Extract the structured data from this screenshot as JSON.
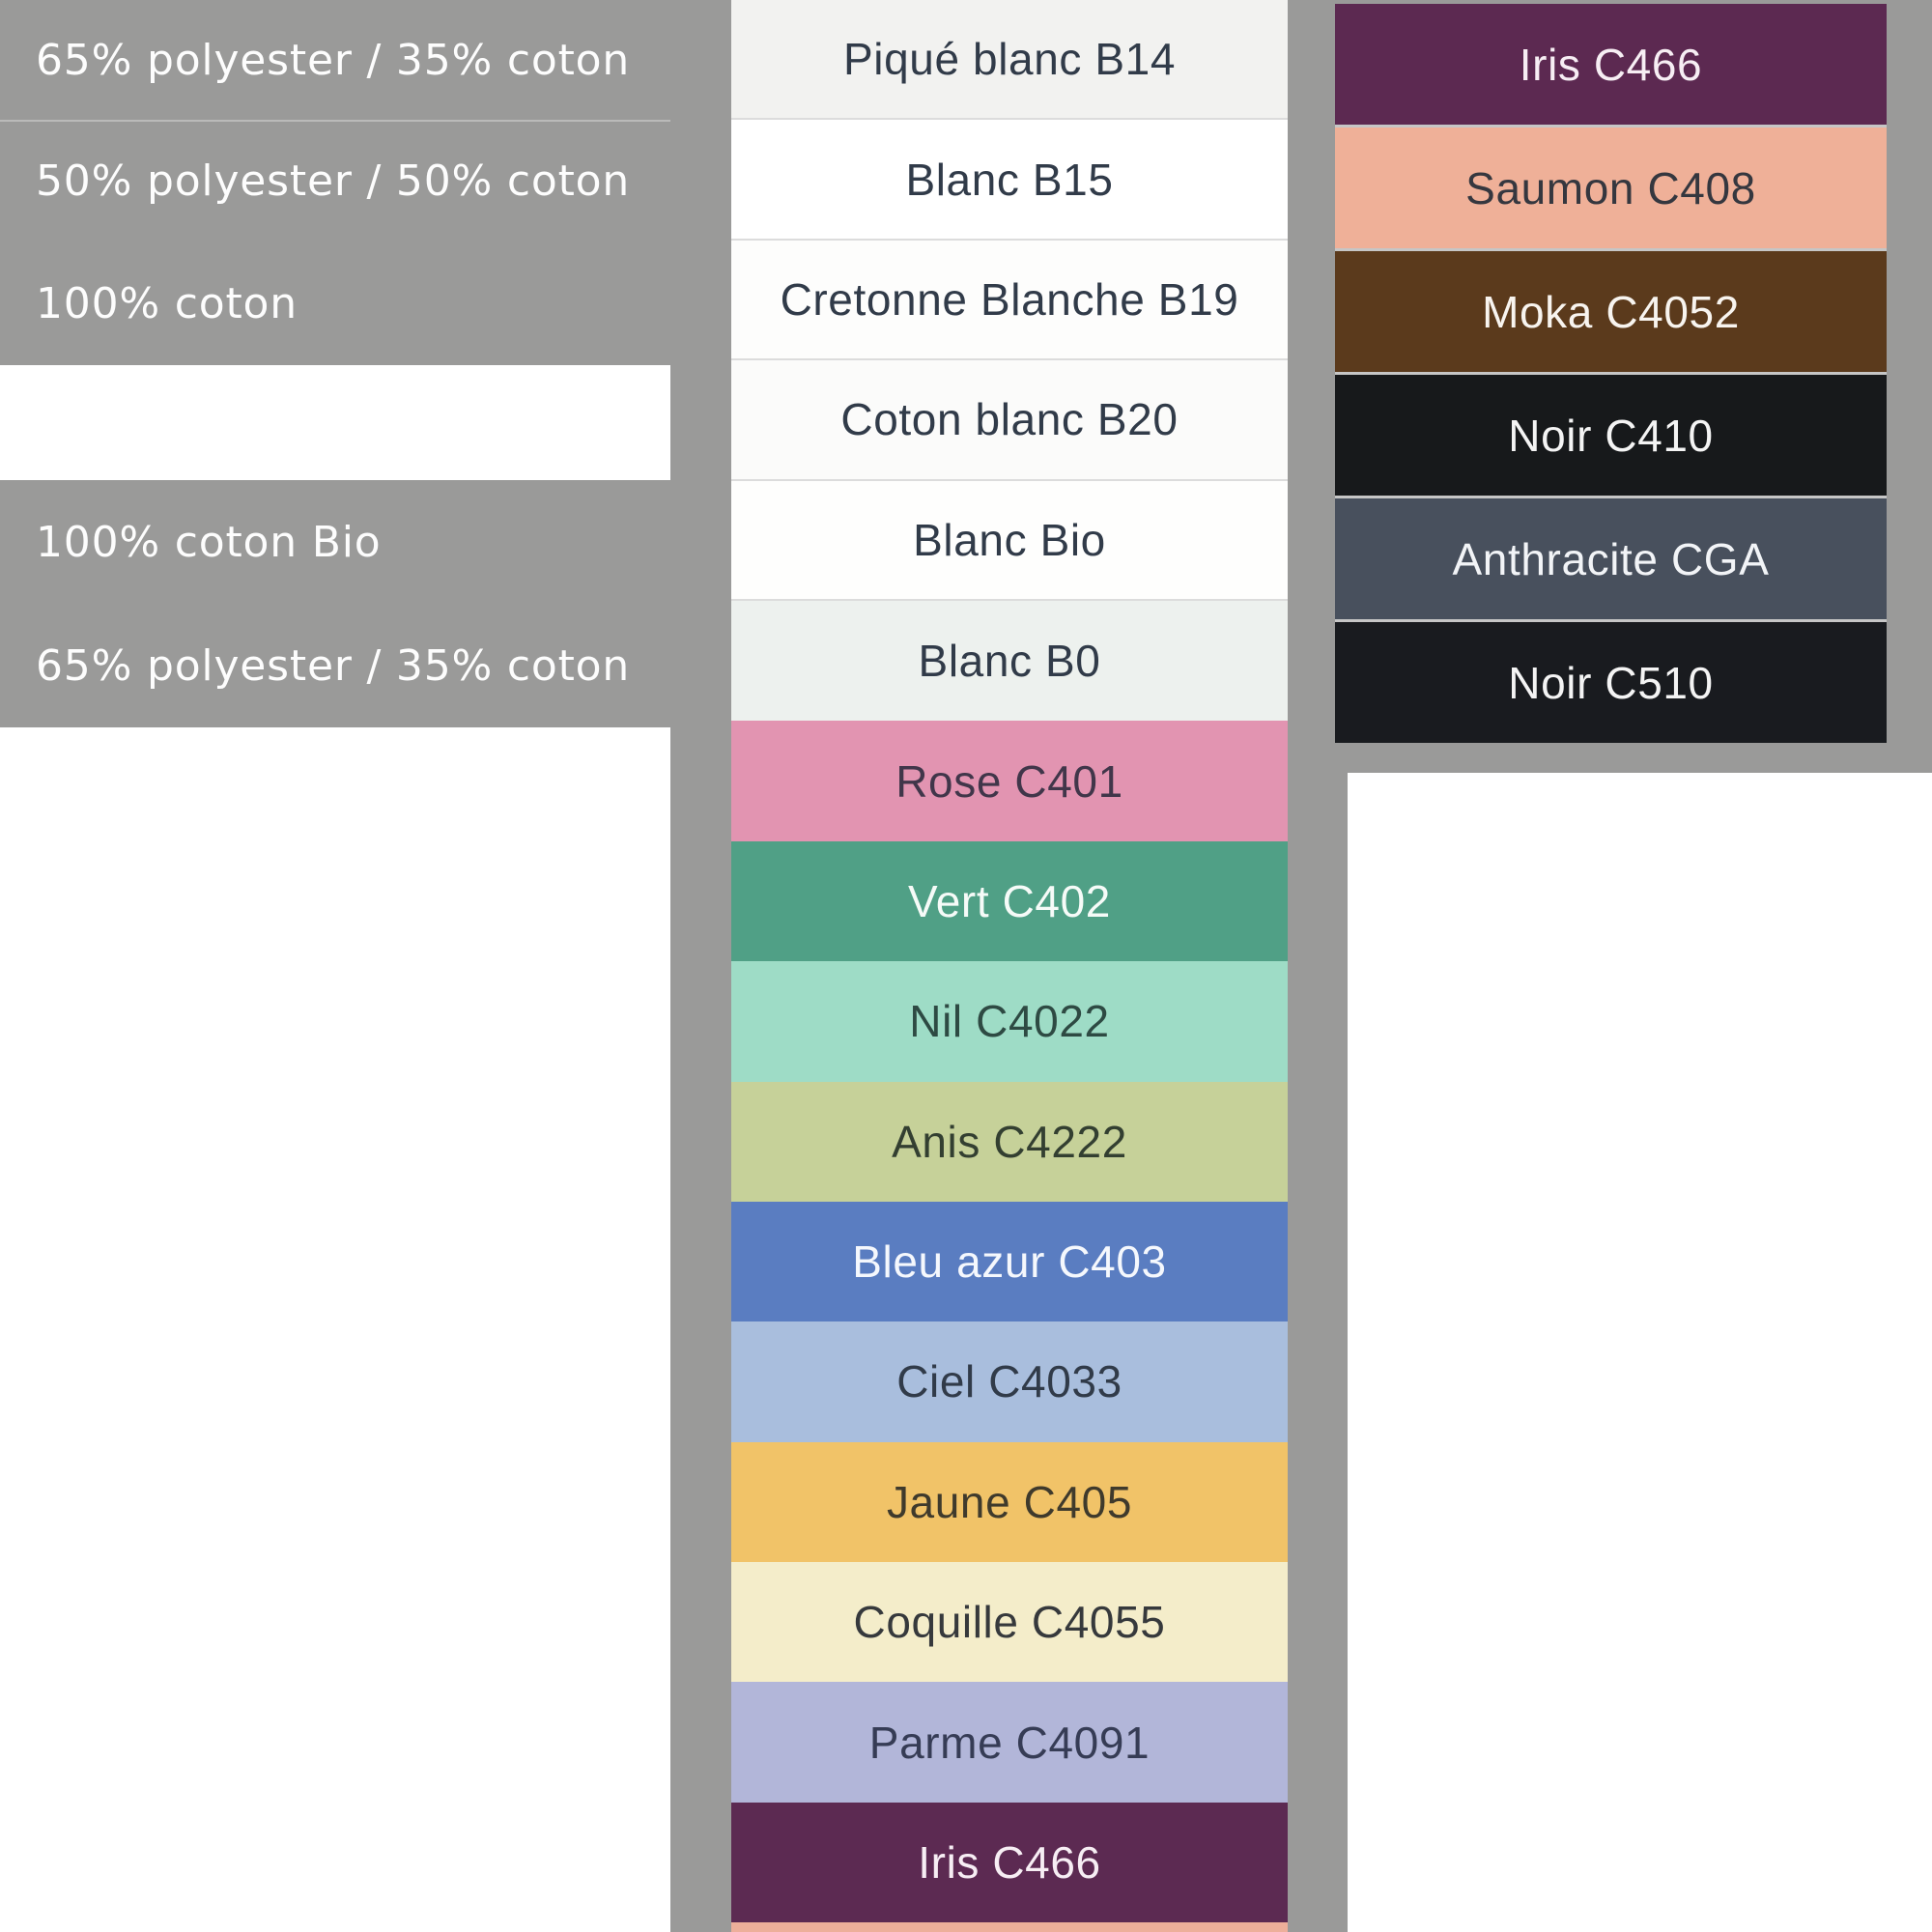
{
  "page": {
    "background_gray": "#9a9a99",
    "white_page_color": "#ffffff",
    "divider_color": "rgba(255,255,255,0.32)",
    "white_row_separator": "#dcdcdc",
    "right_row_separator": "#c6c6c6",
    "label_dark_color": "#313b49",
    "label_light_color": "#f7f2f5",
    "left_text_color": "#fdfdfd"
  },
  "left_panel": {
    "rows": [
      {
        "label": "65% polyester / 35% coton",
        "blank": false
      },
      {
        "label": "50% polyester / 50% coton",
        "blank": false
      },
      {
        "label": "100% coton",
        "blank": false
      },
      {
        "label": "",
        "blank": true
      },
      {
        "label": "100% coton Bio",
        "blank": false
      },
      {
        "label": "65% polyester / 35% coton",
        "blank": false
      }
    ]
  },
  "middle_column": {
    "swatches": [
      {
        "label": "Piqué blanc B14",
        "bg": "#f2f2f0",
        "text": "#313b49",
        "texture": "stripes-v",
        "sep": true
      },
      {
        "label": "Blanc B15",
        "bg": "#ffffff",
        "text": "#313b49",
        "texture": "",
        "sep": true
      },
      {
        "label": "Cretonne Blanche B19",
        "bg": "#fdfdfc",
        "text": "#313b49",
        "texture": "",
        "sep": true
      },
      {
        "label": "Coton blanc B20",
        "bg": "#fbfbfa",
        "text": "#313b49",
        "texture": "",
        "sep": true
      },
      {
        "label": "Blanc Bio",
        "bg": "#fefefd",
        "text": "#313b49",
        "texture": "",
        "sep": true
      },
      {
        "label": "Blanc B0",
        "bg": "#edf1ee",
        "text": "#313b49",
        "texture": "",
        "sep": false
      },
      {
        "label": "Rose C401",
        "bg": "#e294b1",
        "text": "#41364a",
        "texture": "",
        "sep": false
      },
      {
        "label": "Vert C402",
        "bg": "#50a086",
        "text": "#f6fbf8",
        "texture": "",
        "sep": false
      },
      {
        "label": "Nil C4022",
        "bg": "#9edcc6",
        "text": "#2e4a43",
        "texture": "",
        "sep": false
      },
      {
        "label": "Anis C4222",
        "bg": "#c6d199",
        "text": "#333f31",
        "texture": "",
        "sep": false
      },
      {
        "label": "Bleu azur C403",
        "bg": "#5a7dc1",
        "text": "#f5f8fd",
        "texture": "",
        "sep": false
      },
      {
        "label": "Ciel C4033",
        "bg": "#a9bedd",
        "text": "#313b49",
        "texture": "",
        "sep": false
      },
      {
        "label": "Jaune C405",
        "bg": "#f1c368",
        "text": "#3f3a2c",
        "texture": "weave-d",
        "sep": false
      },
      {
        "label": "Coquille C4055",
        "bg": "#f4edca",
        "text": "#36393c",
        "texture": "",
        "sep": false
      },
      {
        "label": "Parme C4091",
        "bg": "#b2b6d9",
        "text": "#363c55",
        "texture": "",
        "sep": false
      },
      {
        "label": "Iris C466",
        "bg": "#5c2a52",
        "text": "#f7eef4",
        "texture": "",
        "sep": false
      }
    ],
    "partial_next_swatch": {
      "label": "",
      "bg": "#edaf9a"
    }
  },
  "right_column": {
    "swatches": [
      {
        "label": "Iris C466",
        "bg": "#5c2951",
        "text": "#f7eef4",
        "texture": ""
      },
      {
        "label": "Saumon C408",
        "bg": "#efb098",
        "text": "#35373f",
        "texture": "tex-paper"
      },
      {
        "label": "Moka C4052",
        "bg": "#5b3a1c",
        "text": "#f8f4ef",
        "texture": ""
      },
      {
        "label": "Noir C410",
        "bg": "#17191b",
        "text": "#f4f4f4",
        "texture": "weave-h"
      },
      {
        "label": "Anthracite CGA",
        "bg": "#48505d",
        "text": "#f2f4f7",
        "texture": ""
      },
      {
        "label": "Noir C510",
        "bg": "#191b1f",
        "text": "#f4f4f4",
        "texture": "weave-h"
      }
    ]
  }
}
